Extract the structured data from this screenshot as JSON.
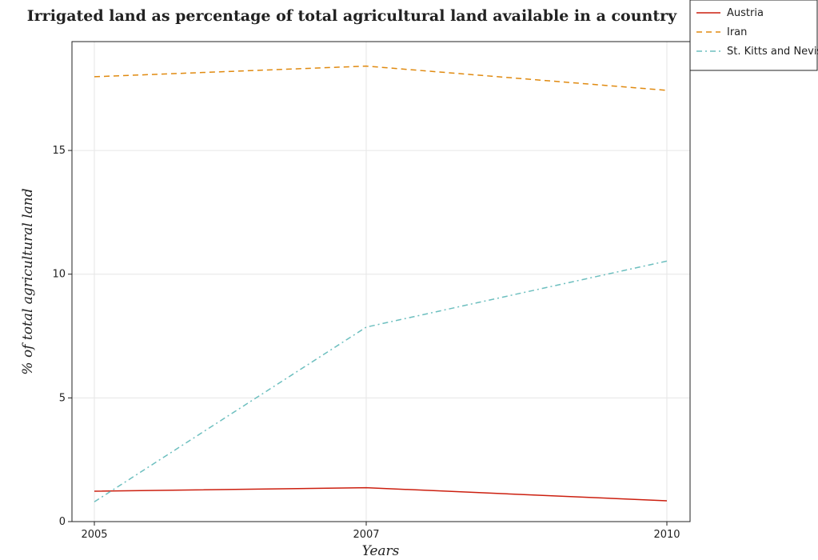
{
  "chart_data": {
    "type": "line",
    "title": "Irrigated land as percentage of total agricultural land available in a country",
    "xlabel": "Years",
    "ylabel": "% of total agricultural land",
    "x": [
      "2005",
      "2007",
      "2010"
    ],
    "y_ticks": [
      "0",
      "5",
      "10",
      "15"
    ],
    "ylim": [
      0,
      19.4
    ],
    "grid": true,
    "legend_position": "top-right",
    "series": [
      {
        "name": "Austria",
        "color": "#cc1f0f",
        "dash": "solid",
        "values": [
          1.23,
          1.37,
          0.84
        ]
      },
      {
        "name": "Iran",
        "color": "#e08a10",
        "dash": "dashed",
        "values": [
          17.98,
          18.41,
          17.43
        ]
      },
      {
        "name": "St. Kitts and Nevis",
        "color": "#6dbfbf",
        "dash": "dashdot",
        "values": [
          0.8,
          7.86,
          10.53
        ]
      }
    ]
  }
}
